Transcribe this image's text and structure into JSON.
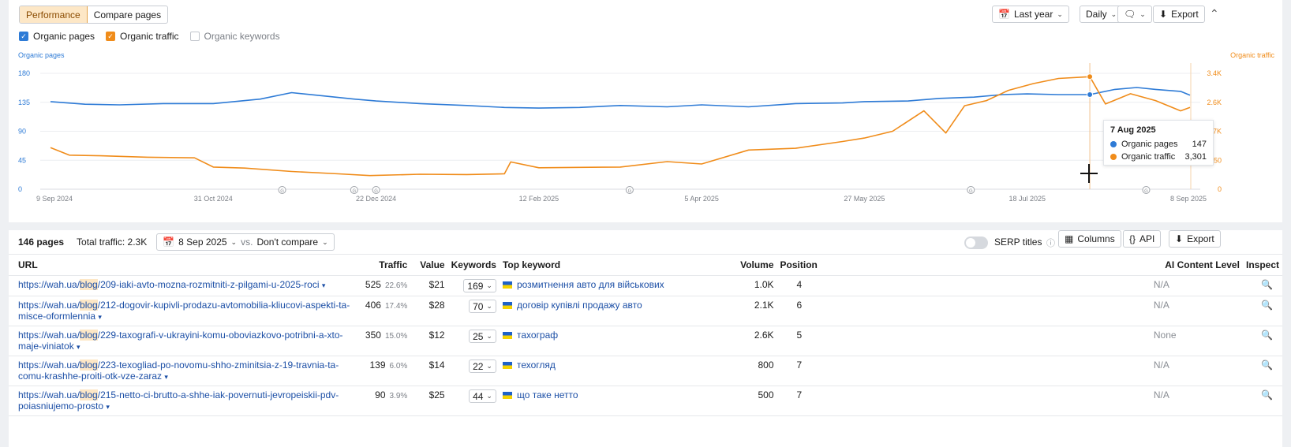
{
  "toolbar": {
    "tab_performance": "Performance",
    "tab_compare": "Compare pages",
    "range": "Last year",
    "granularity": "Daily",
    "export": "Export"
  },
  "legend": {
    "organic_pages": "Organic pages",
    "organic_traffic": "Organic traffic",
    "organic_keywords": "Organic keywords"
  },
  "colors": {
    "pages": "#2e7bd6",
    "traffic": "#f08c1a",
    "accent": "#fde7c6"
  },
  "chart_data": {
    "type": "line",
    "left_axis_label": "Organic pages",
    "right_axis_label": "Organic traffic",
    "left_ticks": [
      "0",
      "45",
      "90",
      "135",
      "180"
    ],
    "right_ticks": [
      "0",
      "850",
      "1.7K",
      "2.6K",
      "3.4K"
    ],
    "x_ticks": [
      "9 Sep 2024",
      "31 Oct 2024",
      "22 Dec 2024",
      "12 Feb 2025",
      "5 Apr 2025",
      "27 May 2025",
      "18 Jul 2025",
      "8 Sep 2025"
    ],
    "left_ylim": [
      0,
      180
    ],
    "right_ylim": [
      0,
      3400
    ],
    "grid": true,
    "annotation_markers": [
      "2024-11-22",
      "2024-12-15",
      "2024-12-22",
      "2025-03-13",
      "2025-06-30",
      "2025-08-25"
    ],
    "series": [
      {
        "name": "Organic pages",
        "axis": "left",
        "x": [
          "2024-09-09",
          "2024-09-20",
          "2024-10-01",
          "2024-10-15",
          "2024-10-31",
          "2024-11-15",
          "2024-11-25",
          "2024-12-05",
          "2024-12-15",
          "2024-12-22",
          "2025-01-05",
          "2025-01-20",
          "2025-02-01",
          "2025-02-12",
          "2025-02-25",
          "2025-03-10",
          "2025-03-25",
          "2025-04-05",
          "2025-04-20",
          "2025-05-05",
          "2025-05-20",
          "2025-05-27",
          "2025-06-10",
          "2025-06-20",
          "2025-07-01",
          "2025-07-10",
          "2025-07-18",
          "2025-07-28",
          "2025-08-07",
          "2025-08-15",
          "2025-08-22",
          "2025-08-28",
          "2025-09-05",
          "2025-09-08"
        ],
        "values": [
          136,
          132,
          131,
          133,
          133,
          140,
          150,
          145,
          140,
          137,
          133,
          130,
          127,
          126,
          127,
          130,
          128,
          131,
          128,
          133,
          134,
          136,
          137,
          141,
          143,
          147,
          148,
          147,
          147,
          155,
          158,
          155,
          152,
          146
        ]
      },
      {
        "name": "Organic traffic",
        "axis": "right",
        "x": [
          "2024-09-09",
          "2024-09-15",
          "2024-09-25",
          "2024-10-10",
          "2024-10-25",
          "2024-10-31",
          "2024-11-10",
          "2024-11-25",
          "2024-12-10",
          "2024-12-20",
          "2025-01-05",
          "2025-01-20",
          "2025-02-01",
          "2025-02-03",
          "2025-02-12",
          "2025-02-25",
          "2025-03-10",
          "2025-03-25",
          "2025-04-05",
          "2025-04-20",
          "2025-05-05",
          "2025-05-20",
          "2025-05-27",
          "2025-06-05",
          "2025-06-15",
          "2025-06-22",
          "2025-06-28",
          "2025-07-05",
          "2025-07-12",
          "2025-07-20",
          "2025-07-28",
          "2025-08-07",
          "2025-08-12",
          "2025-08-20",
          "2025-08-28",
          "2025-09-05",
          "2025-09-08"
        ],
        "values": [
          1220,
          1000,
          980,
          940,
          920,
          650,
          620,
          520,
          450,
          400,
          440,
          430,
          450,
          800,
          630,
          640,
          650,
          810,
          740,
          1150,
          1200,
          1400,
          1500,
          1700,
          2300,
          1650,
          2450,
          2600,
          2900,
          3100,
          3250,
          3301,
          2500,
          2800,
          2600,
          2300,
          2400
        ]
      }
    ]
  },
  "tooltip": {
    "date": "7 Aug 2025",
    "pages_label": "Organic pages",
    "pages_value": "147",
    "traffic_label": "Organic traffic",
    "traffic_value": "3,301"
  },
  "summary": {
    "pages": "146 pages",
    "total_traffic": "Total traffic: 2.3K",
    "date": "8 Sep 2025",
    "vs": "vs.",
    "compare": "Don't compare",
    "serp_titles": "SERP titles",
    "columns": "Columns",
    "api": "API",
    "export": "Export"
  },
  "table": {
    "headers": [
      "URL",
      "Traffic",
      "Value",
      "Keywords",
      "Top keyword",
      "Volume",
      "Position",
      "AI Content Level",
      "Inspect"
    ],
    "rows": [
      {
        "url_pre": "https://wah.ua/",
        "url_hl": "blog",
        "url_post": "/209-iaki-avto-mozna-rozmitniti-z-pilgami-u-2025-roci",
        "traffic": "525",
        "pct": "22.6%",
        "value": "$21",
        "keywords": "169",
        "top_keyword": "розмитнення авто для військових",
        "volume": "1.0K",
        "position": "4",
        "ai": "N/A"
      },
      {
        "url_pre": "https://wah.ua/",
        "url_hl": "blog",
        "url_post": "/212-dogovir-kupivli-prodazu-avtomobilia-kliucovi-aspekti-ta-misce-oformlennia",
        "traffic": "406",
        "pct": "17.4%",
        "value": "$28",
        "keywords": "70",
        "top_keyword": "договір купівлі продажу авто",
        "volume": "2.1K",
        "position": "6",
        "ai": "N/A"
      },
      {
        "url_pre": "https://wah.ua/",
        "url_hl": "blog",
        "url_post": "/229-taxografi-v-ukrayini-komu-oboviazkovo-potribni-a-xto-maje-viniatok",
        "traffic": "350",
        "pct": "15.0%",
        "value": "$12",
        "keywords": "25",
        "top_keyword": "тахограф",
        "volume": "2.6K",
        "position": "5",
        "ai": "None"
      },
      {
        "url_pre": "https://wah.ua/",
        "url_hl": "blog",
        "url_post": "/223-texogliad-po-novomu-shho-zminitsia-z-19-travnia-ta-comu-krashhe-proiti-otk-vze-zaraz",
        "traffic": "139",
        "pct": "6.0%",
        "value": "$14",
        "keywords": "22",
        "top_keyword": "техогляд",
        "volume": "800",
        "position": "7",
        "ai": "N/A"
      },
      {
        "url_pre": "https://wah.ua/",
        "url_hl": "blog",
        "url_post": "/215-netto-ci-brutto-a-shhe-iak-povernuti-jevropeiskii-pdv-poiasniujemo-prosto",
        "traffic": "90",
        "pct": "3.9%",
        "value": "$25",
        "keywords": "44",
        "top_keyword": "що таке нетто",
        "volume": "500",
        "position": "7",
        "ai": "N/A"
      }
    ]
  }
}
